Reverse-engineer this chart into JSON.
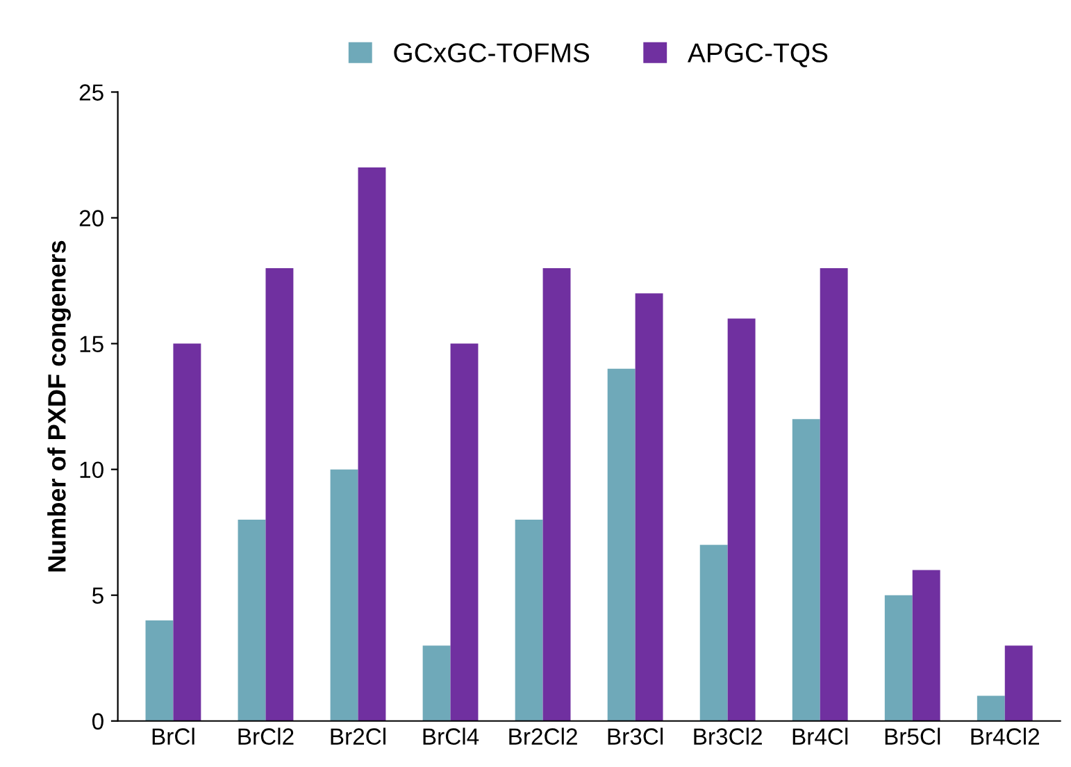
{
  "chart_data": {
    "type": "bar",
    "ylabel": "Number of PXDF congeners",
    "categories": [
      "BrCl",
      "BrCl2",
      "Br2Cl",
      "BrCl4",
      "Br2Cl2",
      "Br3Cl",
      "Br3Cl2",
      "Br4Cl",
      "Br5Cl",
      "Br4Cl2"
    ],
    "series": [
      {
        "name": "GCxGC-TOFMS",
        "color": "#6fa9b9",
        "values": [
          4,
          8,
          10,
          3,
          8,
          14,
          7,
          12,
          5,
          1
        ]
      },
      {
        "name": "APGC-TQS",
        "color": "#7030a0",
        "values": [
          15,
          18,
          22,
          15,
          18,
          17,
          16,
          18,
          6,
          3
        ]
      }
    ],
    "ylim": [
      0,
      25
    ],
    "yticks": [
      0,
      5,
      10,
      15,
      20,
      25
    ],
    "grid": false,
    "legend": "top"
  }
}
